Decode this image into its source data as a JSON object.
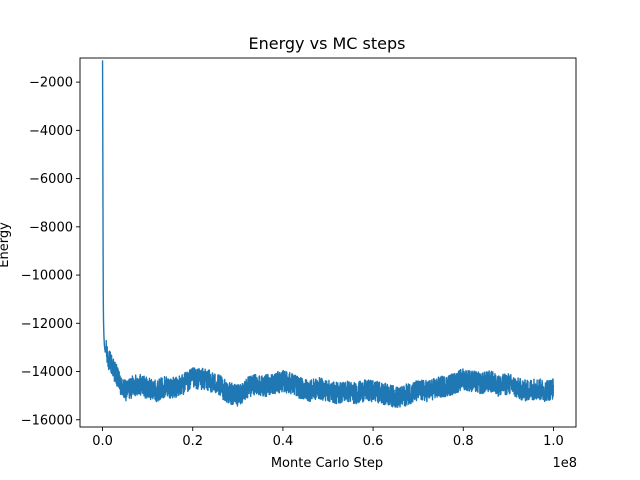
{
  "chart_data": {
    "type": "line",
    "title": "Energy vs MC steps",
    "xlabel": "Monte Carlo Step",
    "ylabel": "Energy",
    "x_offset_label": "1e8",
    "xlim": [
      -0.05,
      1.05
    ],
    "ylim": [
      -16300,
      -1000
    ],
    "x_ticks": [
      0.0,
      0.2,
      0.4,
      0.6,
      0.8,
      1.0
    ],
    "x_tick_labels": [
      "0.0",
      "0.2",
      "0.4",
      "0.6",
      "0.8",
      "1.0"
    ],
    "y_ticks": [
      -16000,
      -14000,
      -12000,
      -10000,
      -8000,
      -6000,
      -4000,
      -2000
    ],
    "y_tick_labels": [
      "−16000",
      "−14000",
      "−12000",
      "−10000",
      "−8000",
      "−6000",
      "−4000",
      "−2000"
    ],
    "grid": false,
    "series": [
      {
        "color": "#1f77b4",
        "x": [
          0.0,
          0.0005,
          0.001,
          0.0015,
          0.002,
          0.003,
          0.004,
          0.006,
          0.008,
          0.01,
          0.02,
          0.03,
          0.04,
          0.05,
          0.06,
          0.08,
          0.1,
          0.12,
          0.14,
          0.16,
          0.18,
          0.2,
          0.22,
          0.24,
          0.26,
          0.28,
          0.3,
          0.32,
          0.34,
          0.36,
          0.38,
          0.4,
          0.42,
          0.44,
          0.46,
          0.48,
          0.5,
          0.52,
          0.54,
          0.56,
          0.58,
          0.6,
          0.62,
          0.64,
          0.66,
          0.68,
          0.7,
          0.72,
          0.74,
          0.76,
          0.78,
          0.8,
          0.82,
          0.84,
          0.86,
          0.88,
          0.9,
          0.92,
          0.94,
          0.96,
          0.98,
          1.0
        ],
        "y": [
          -1100,
          -4000,
          -7500,
          -10500,
          -11800,
          -12500,
          -12900,
          -13200,
          -13100,
          -13400,
          -13700,
          -14100,
          -14600,
          -14800,
          -14700,
          -14500,
          -14700,
          -14800,
          -14600,
          -14700,
          -14500,
          -14300,
          -14300,
          -14400,
          -14600,
          -14900,
          -15000,
          -14700,
          -14500,
          -14600,
          -14500,
          -14400,
          -14500,
          -14700,
          -14800,
          -14700,
          -14800,
          -14900,
          -14800,
          -14900,
          -14800,
          -14800,
          -14900,
          -15000,
          -15100,
          -14900,
          -14800,
          -14800,
          -14700,
          -14600,
          -14500,
          -14300,
          -14400,
          -14500,
          -14400,
          -14600,
          -14500,
          -14700,
          -14800,
          -14700,
          -14800,
          -14700
        ]
      }
    ]
  }
}
